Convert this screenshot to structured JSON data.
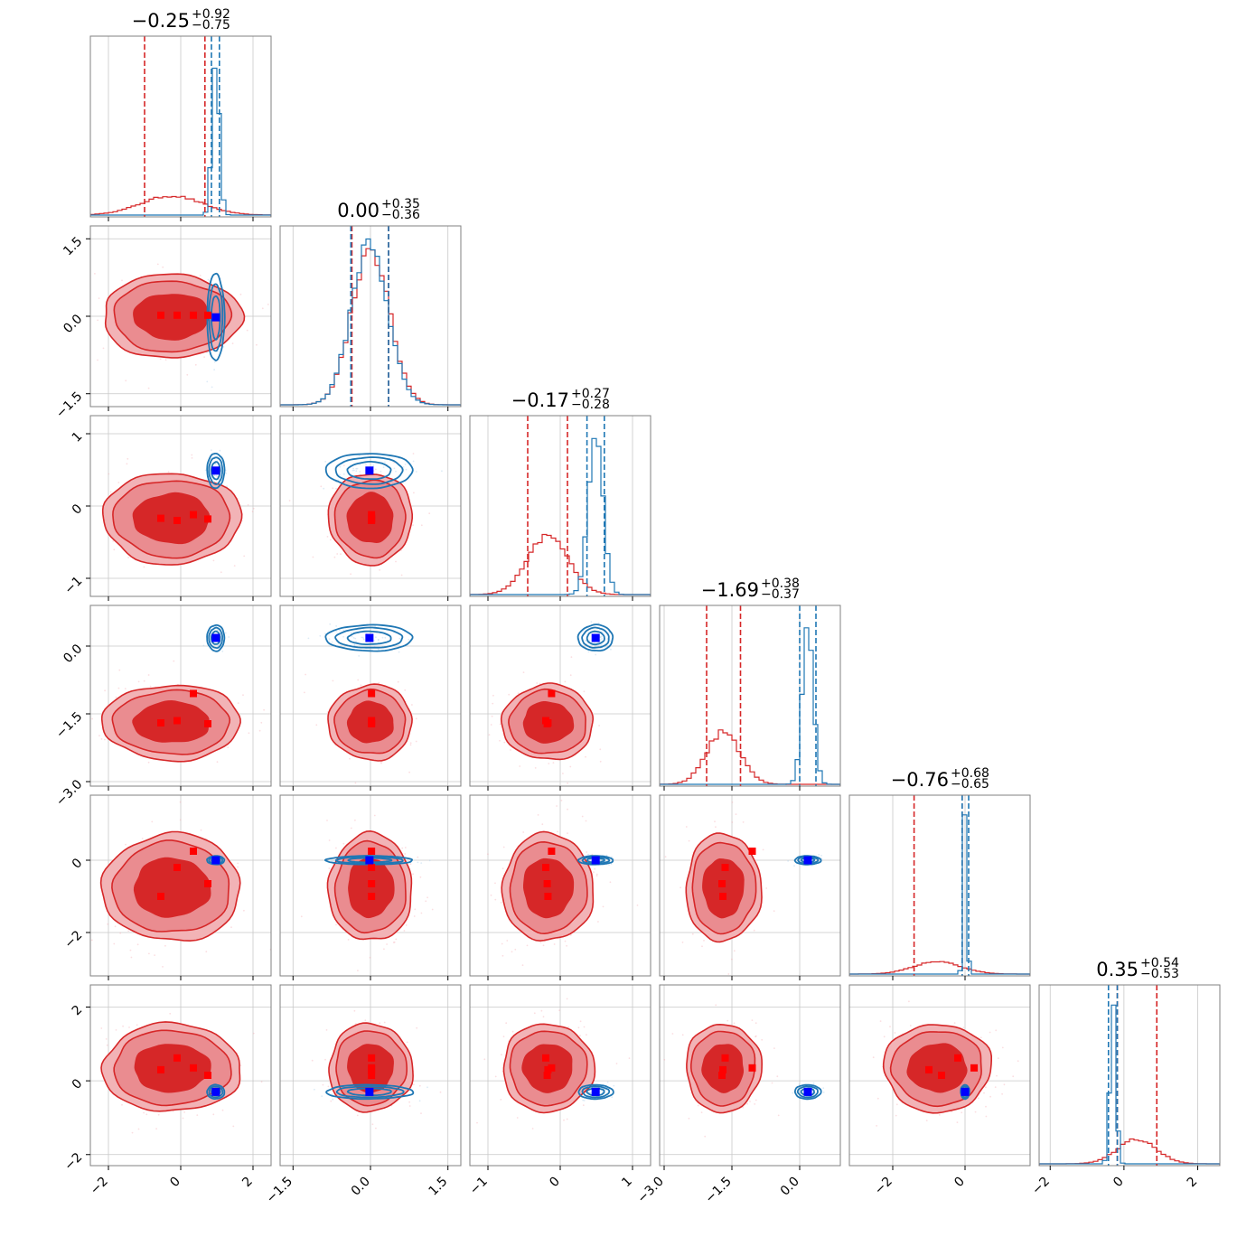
{
  "chart_data": {
    "type": "corner",
    "n_params": 6,
    "colors": {
      "prior": "#d62728",
      "posterior": "#1f77b4",
      "marker_red": "#ff0000",
      "marker_blue": "#0000ff",
      "grid": "#c8c8c8"
    },
    "params": [
      {
        "median": "−0.25",
        "plus": "+0.92",
        "minus": "−0.75",
        "range": [
          -2.5,
          2.5
        ],
        "ticks": [
          -2,
          0,
          2
        ],
        "tick_labels": [
          "−2",
          "0",
          "2"
        ],
        "red": {
          "mean": -0.25,
          "sd": 0.85,
          "q": [
            -1.0,
            0.67
          ]
        },
        "blue": {
          "mean": 0.97,
          "sd": 0.1,
          "q": [
            0.85,
            1.07
          ]
        }
      },
      {
        "median": "0.00",
        "plus": "+0.35",
        "minus": "−0.36",
        "range": [
          -1.75,
          1.75
        ],
        "ticks": [
          -1.5,
          0.0,
          1.5
        ],
        "tick_labels": [
          "−1.5",
          "0.0",
          "1.5"
        ],
        "red": {
          "mean": 0.0,
          "sd": 0.36,
          "q": [
            -0.36,
            0.35
          ]
        },
        "blue": {
          "mean": -0.02,
          "sd": 0.35,
          "q": [
            -0.38,
            0.35
          ]
        }
      },
      {
        "median": "−0.17",
        "plus": "+0.27",
        "minus": "−0.28",
        "range": [
          -1.25,
          1.25
        ],
        "ticks": [
          -1,
          0,
          1
        ],
        "tick_labels": [
          "−1",
          "0",
          "1"
        ],
        "red": {
          "mean": -0.17,
          "sd": 0.28,
          "q": [
            -0.45,
            0.1
          ]
        },
        "blue": {
          "mean": 0.49,
          "sd": 0.1,
          "q": [
            0.37,
            0.61
          ]
        }
      },
      {
        "median": "−1.69",
        "plus": "+0.38",
        "minus": "−0.37",
        "range": [
          -3.1,
          0.9
        ],
        "ticks": [
          -3.0,
          -1.5,
          0.0
        ],
        "tick_labels": [
          "−3.0",
          "−1.5",
          "0.0"
        ],
        "red": {
          "mean": -1.69,
          "sd": 0.37,
          "q": [
            -2.06,
            -1.31
          ]
        },
        "blue": {
          "mean": 0.18,
          "sd": 0.12,
          "q": [
            0.0,
            0.36
          ]
        }
      },
      {
        "median": "−0.76",
        "plus": "+0.68",
        "minus": "−0.65",
        "range": [
          -3.2,
          1.8
        ],
        "ticks": [
          -2,
          0
        ],
        "tick_labels": [
          "−2",
          "0"
        ],
        "red": {
          "mean": -0.76,
          "sd": 0.66,
          "q": [
            -1.41,
            -0.08
          ]
        },
        "blue": {
          "mean": 0.0,
          "sd": 0.05,
          "q": [
            -0.08,
            0.1
          ]
        }
      },
      {
        "median": "0.35",
        "plus": "+0.54",
        "minus": "−0.53",
        "range": [
          -2.3,
          2.6
        ],
        "ticks": [
          -2,
          0,
          2
        ],
        "tick_labels": [
          "−2",
          "0",
          "2"
        ],
        "red": {
          "mean": 0.35,
          "sd": 0.53,
          "q": [
            -0.18,
            0.89
          ]
        },
        "blue": {
          "mean": -0.3,
          "sd": 0.08,
          "q": [
            -0.42,
            -0.18
          ]
        }
      }
    ],
    "markers_red": [
      [
        -0.55,
        0.02,
        -0.17,
        -1.7,
        -1.0,
        0.3
      ],
      [
        -0.1,
        0.02,
        -0.2,
        -1.65,
        -0.2,
        0.62
      ],
      [
        0.35,
        0.02,
        -0.12,
        -1.05,
        0.25,
        0.35
      ],
      [
        0.75,
        0.02,
        -0.18,
        -1.72,
        -0.65,
        0.15
      ]
    ],
    "marker_blue": [
      0.97,
      -0.02,
      0.49,
      0.18,
      0.0,
      -0.3
    ]
  }
}
